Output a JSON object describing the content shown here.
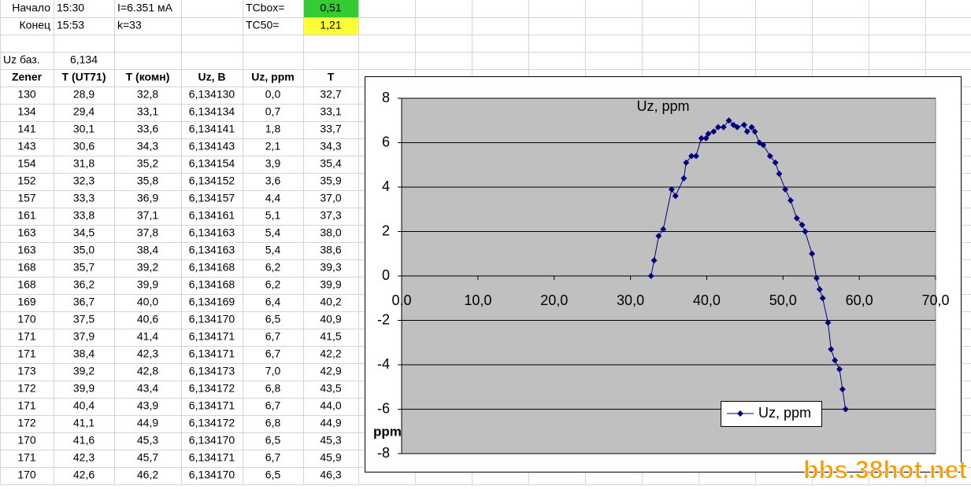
{
  "sheet": {
    "start_label": "Начало",
    "start_time": "15:30",
    "current": "I=6.351 мА",
    "tcbox_label": "TCbox=",
    "tcbox": "0,51",
    "end_label": "Конец",
    "end_time": "15:53",
    "k": "k=33",
    "tc50_label": "TC50=",
    "tc50": "1,21",
    "uz_base_label": "Uz баз.",
    "uz_base": "6,134",
    "table": {
      "headers": [
        "Zener",
        "T (UT71)",
        "T (комн)",
        "Uz, B",
        "Uz, ppm",
        "T"
      ],
      "rows": [
        [
          "130",
          "28,9",
          "32,8",
          "6,134130",
          "0,0",
          "32,7"
        ],
        [
          "134",
          "29,4",
          "33,1",
          "6,134134",
          "0,7",
          "33,1"
        ],
        [
          "141",
          "30,1",
          "33,6",
          "6,134141",
          "1,8",
          "33,7"
        ],
        [
          "143",
          "30,6",
          "34,3",
          "6,134143",
          "2,1",
          "34,3"
        ],
        [
          "154",
          "31,8",
          "35,2",
          "6,134154",
          "3,9",
          "35,4"
        ],
        [
          "152",
          "32,3",
          "35,8",
          "6,134152",
          "3,6",
          "35,9"
        ],
        [
          "157",
          "33,3",
          "36,9",
          "6,134157",
          "4,4",
          "37,0"
        ],
        [
          "161",
          "33,8",
          "37,1",
          "6,134161",
          "5,1",
          "37,3"
        ],
        [
          "163",
          "34,5",
          "37,8",
          "6,134163",
          "5,4",
          "38,0"
        ],
        [
          "163",
          "35,0",
          "38,4",
          "6,134163",
          "5,4",
          "38,6"
        ],
        [
          "168",
          "35,7",
          "39,2",
          "6,134168",
          "6,2",
          "39,3"
        ],
        [
          "168",
          "36,2",
          "39,9",
          "6,134168",
          "6,2",
          "39,9"
        ],
        [
          "169",
          "36,7",
          "40,0",
          "6,134169",
          "6,4",
          "40,2"
        ],
        [
          "170",
          "37,5",
          "40,6",
          "6,134170",
          "6,5",
          "40,9"
        ],
        [
          "171",
          "37,9",
          "41,4",
          "6,134171",
          "6,7",
          "41,5"
        ],
        [
          "171",
          "38,4",
          "42,3",
          "6,134171",
          "6,7",
          "42,2"
        ],
        [
          "173",
          "39,2",
          "42,8",
          "6,134173",
          "7,0",
          "42,9"
        ],
        [
          "172",
          "39,9",
          "43,4",
          "6,134172",
          "6,8",
          "43,5"
        ],
        [
          "171",
          "40,4",
          "43,9",
          "6,134171",
          "6,7",
          "44,0"
        ],
        [
          "172",
          "41,1",
          "44,9",
          "6,134172",
          "6,8",
          "44,9"
        ],
        [
          "170",
          "41,6",
          "45,3",
          "6,134170",
          "6,5",
          "45,3"
        ],
        [
          "171",
          "42,3",
          "45,7",
          "6,134171",
          "6,7",
          "45,9"
        ],
        [
          "170",
          "42,6",
          "46,2",
          "6,134170",
          "6,5",
          "46,3"
        ]
      ]
    }
  },
  "chart_data": {
    "type": "line",
    "title": "Uz, ppm",
    "y_label": "ppm",
    "x": [
      32.7,
      33.1,
      33.7,
      34.3,
      35.4,
      35.9,
      37.0,
      37.3,
      38.0,
      38.6,
      39.3,
      39.9,
      40.2,
      40.9,
      41.5,
      42.2,
      42.9,
      43.5,
      44.0,
      44.9,
      45.3,
      45.9,
      46.3,
      46.9,
      47.4,
      48.3,
      49.0,
      49.5,
      50.3,
      51.0,
      51.8,
      52.5,
      52.9,
      53.8,
      54.4,
      54.8,
      55.2,
      55.9,
      56.3,
      56.8,
      57.4,
      57.8,
      58.2
    ],
    "series": [
      {
        "name": "Uz, ppm",
        "color": "#000080",
        "values": [
          0.0,
          0.7,
          1.8,
          2.1,
          3.9,
          3.6,
          4.4,
          5.1,
          5.4,
          5.4,
          6.2,
          6.2,
          6.4,
          6.5,
          6.7,
          6.7,
          7.0,
          6.8,
          6.7,
          6.8,
          6.5,
          6.7,
          6.5,
          6.0,
          5.9,
          5.4,
          5.1,
          4.6,
          3.9,
          3.4,
          2.6,
          2.3,
          2.0,
          1.0,
          -0.1,
          -0.6,
          -1.0,
          -2.1,
          -3.3,
          -3.8,
          -4.2,
          -5.1,
          -6.0
        ]
      }
    ],
    "xlim": [
      0,
      70
    ],
    "xticks": [
      {
        "value": 0,
        "label": "0,0"
      },
      {
        "value": 10,
        "label": "10,0"
      },
      {
        "value": 20,
        "label": "20,0"
      },
      {
        "value": 30,
        "label": "30,0"
      },
      {
        "value": 40,
        "label": "40,0"
      },
      {
        "value": 50,
        "label": "50,0"
      },
      {
        "value": 60,
        "label": "60,0"
      },
      {
        "value": 70,
        "label": "70,0"
      }
    ],
    "ylim": [
      -8,
      8
    ],
    "yticks": [
      -8,
      -6,
      -4,
      -2,
      0,
      2,
      4,
      6,
      8
    ],
    "grid": true,
    "legend": "lower right",
    "plot_background": "#c0c0c0"
  },
  "watermark": "bbs.38hot.net"
}
